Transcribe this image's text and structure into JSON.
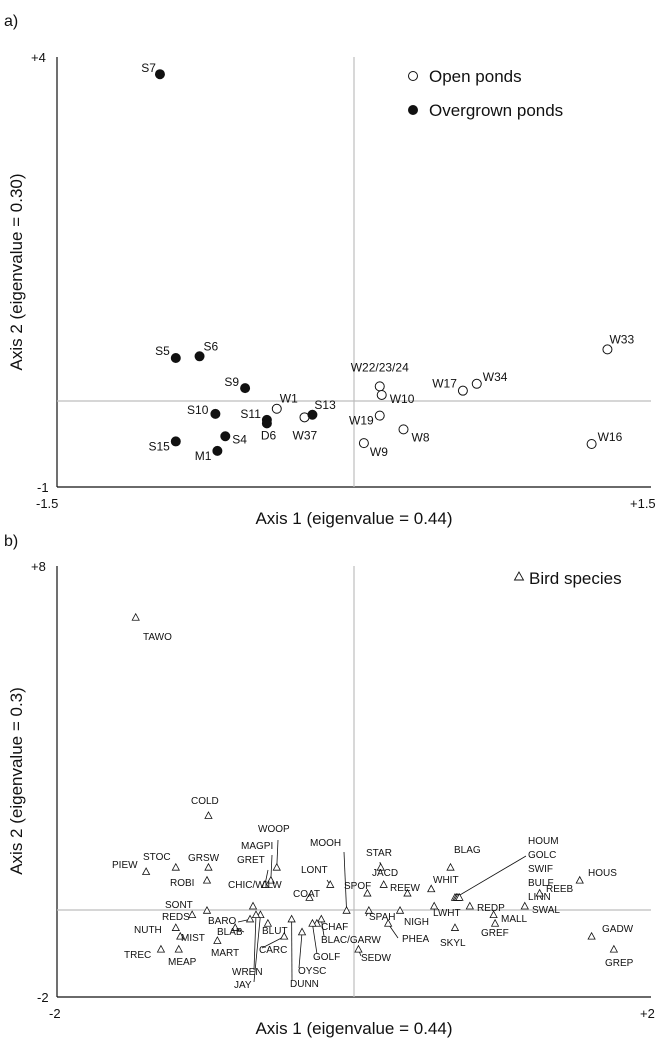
{
  "chart_data": [
    {
      "panel_label": "a)",
      "type": "scatter",
      "xlabel": "Axis 1 (eigenvalue = 0.44)",
      "ylabel": "Axis 2 (eigenvalue = 0.30)",
      "xlim": [
        -1.5,
        1.5
      ],
      "ylim": [
        -1,
        4
      ],
      "xtick_labels": [
        "-1.5",
        "+1.5"
      ],
      "ytick_labels": [
        "+4",
        "-1"
      ],
      "grid": false,
      "legend_position": "top-right",
      "series": [
        {
          "name": "Open ponds",
          "marker": "open-circle",
          "points": [
            {
              "label": "W33",
              "x": 1.28,
              "y": 0.6
            },
            {
              "label": "W16",
              "x": 1.2,
              "y": -0.5
            },
            {
              "label": "W34",
              "x": 0.62,
              "y": 0.2
            },
            {
              "label": "W17",
              "x": 0.55,
              "y": 0.12
            },
            {
              "label": "W22/23/24",
              "x": 0.13,
              "y": 0.17
            },
            {
              "label": "W10",
              "x": 0.14,
              "y": 0.07
            },
            {
              "label": "W19",
              "x": 0.13,
              "y": -0.17
            },
            {
              "label": "W8",
              "x": 0.25,
              "y": -0.33
            },
            {
              "label": "W9",
              "x": 0.05,
              "y": -0.49
            },
            {
              "label": "W37",
              "x": -0.25,
              "y": -0.19
            },
            {
              "label": "W1",
              "x": -0.39,
              "y": -0.09
            }
          ]
        },
        {
          "name": "Overgrown ponds",
          "marker": "filled-circle",
          "points": [
            {
              "label": "S7",
              "x": -0.98,
              "y": 3.8
            },
            {
              "label": "S5",
              "x": -0.9,
              "y": 0.5
            },
            {
              "label": "S6",
              "x": -0.78,
              "y": 0.52
            },
            {
              "label": "S9",
              "x": -0.55,
              "y": 0.15
            },
            {
              "label": "S10",
              "x": -0.7,
              "y": -0.15
            },
            {
              "label": "S11",
              "x": -0.44,
              "y": -0.22
            },
            {
              "label": "D6",
              "x": -0.44,
              "y": -0.26
            },
            {
              "label": "S13",
              "x": -0.21,
              "y": -0.16
            },
            {
              "label": "S15",
              "x": -0.9,
              "y": -0.47
            },
            {
              "label": "S4",
              "x": -0.65,
              "y": -0.41
            },
            {
              "label": "M1",
              "x": -0.69,
              "y": -0.58
            }
          ]
        }
      ]
    },
    {
      "panel_label": "b)",
      "type": "scatter",
      "xlabel": "Axis 1 (eigenvalue = 0.44)",
      "ylabel": "Axis 2 (eigenvalue = 0.3)",
      "xlim": [
        -2,
        2
      ],
      "ylim": [
        -2,
        8
      ],
      "xtick_labels": [
        "-2",
        "+2"
      ],
      "ytick_labels": [
        "+8",
        "-2"
      ],
      "grid": false,
      "legend_position": "top-right",
      "series": [
        {
          "name": "Bird species",
          "marker": "open-triangle",
          "points": [
            {
              "label": "TAWO",
              "x": -1.47,
              "y": 6.8
            },
            {
              "label": "COLD",
              "x": -0.98,
              "y": 2.2
            },
            {
              "label": "PIEW",
              "x": -1.4,
              "y": 0.9
            },
            {
              "label": "STOC",
              "x": -1.2,
              "y": 1.0
            },
            {
              "label": "GRSW",
              "x": -0.98,
              "y": 1.0
            },
            {
              "label": "ROBI",
              "x": -0.99,
              "y": 0.7
            },
            {
              "label": "WOOP",
              "x": -0.52,
              "y": 1.0
            },
            {
              "label": "MAGPI",
              "x": -0.56,
              "y": 0.7
            },
            {
              "label": "GRET",
              "x": -0.6,
              "y": 0.6
            },
            {
              "label": "MOOH",
              "x": -0.05,
              "y": 0.0
            },
            {
              "label": "LONT",
              "x": -0.16,
              "y": 0.6
            },
            {
              "label": "COAT",
              "x": -0.3,
              "y": 0.3
            },
            {
              "label": "CHIC/WILW",
              "x": -0.68,
              "y": 0.1
            },
            {
              "label": "STAR",
              "x": 0.18,
              "y": 1.0
            },
            {
              "label": "JACD",
              "x": 0.2,
              "y": 0.6
            },
            {
              "label": "SPOF",
              "x": 0.09,
              "y": 0.4
            },
            {
              "label": "REEW",
              "x": 0.36,
              "y": 0.4
            },
            {
              "label": "WHIT",
              "x": 0.52,
              "y": 0.5
            },
            {
              "label": "BLAG",
              "x": 0.65,
              "y": 1.0
            },
            {
              "label": "HOUM",
              "x": 0.68,
              "y": 0.3
            },
            {
              "label": "GOLC",
              "x": 0.69,
              "y": 0.3
            },
            {
              "label": "SWIF",
              "x": 0.7,
              "y": 0.3
            },
            {
              "label": "BULF",
              "x": 0.7,
              "y": 0.3
            },
            {
              "label": "LINN",
              "x": 0.71,
              "y": 0.3
            },
            {
              "label": "HOUS",
              "x": 1.52,
              "y": 0.7
            },
            {
              "label": "REEB",
              "x": 1.25,
              "y": 0.4
            },
            {
              "label": "SWAL",
              "x": 1.15,
              "y": 0.1
            },
            {
              "label": "MALL",
              "x": 0.94,
              "y": -0.1
            },
            {
              "label": "REDP",
              "x": 0.78,
              "y": 0.1
            },
            {
              "label": "LWHT",
              "x": 0.54,
              "y": 0.1
            },
            {
              "label": "GREF",
              "x": 0.95,
              "y": -0.3
            },
            {
              "label": "GADW",
              "x": 1.6,
              "y": -0.6
            },
            {
              "label": "GREP",
              "x": 1.75,
              "y": -0.9
            },
            {
              "label": "SPAH",
              "x": 0.1,
              "y": 0.0
            },
            {
              "label": "NIGH",
              "x": 0.31,
              "y": 0.0
            },
            {
              "label": "PHEA",
              "x": 0.23,
              "y": -0.3
            },
            {
              "label": "SKYL",
              "x": 0.68,
              "y": -0.4
            },
            {
              "label": "SEDW",
              "x": 0.03,
              "y": -0.9
            },
            {
              "label": "BLAC/GARW",
              "x": -0.22,
              "y": -0.2
            },
            {
              "label": "CHAF",
              "x": -0.25,
              "y": -0.3
            },
            {
              "label": "GOLF",
              "x": -0.28,
              "y": -0.3
            },
            {
              "label": "OYSC",
              "x": -0.35,
              "y": -0.5
            },
            {
              "label": "DUNN",
              "x": -0.42,
              "y": -0.2
            },
            {
              "label": "CARC",
              "x": -0.47,
              "y": -0.6
            },
            {
              "label": "BLUT",
              "x": -0.58,
              "y": -0.3
            },
            {
              "label": "JAY",
              "x": -0.63,
              "y": -0.1
            },
            {
              "label": "WREN",
              "x": -0.66,
              "y": -0.1
            },
            {
              "label": "BARO",
              "x": -0.7,
              "y": -0.2
            },
            {
              "label": "BLAB",
              "x": -0.8,
              "y": -0.4
            },
            {
              "label": "MART",
              "x": -0.92,
              "y": -0.7
            },
            {
              "label": "SONT",
              "x": -0.99,
              "y": 0.0
            },
            {
              "label": "REDS",
              "x": -1.09,
              "y": -0.1
            },
            {
              "label": "NUTH",
              "x": -1.2,
              "y": -0.4
            },
            {
              "label": "MIST",
              "x": -1.17,
              "y": -0.6
            },
            {
              "label": "TREC",
              "x": -1.3,
              "y": -0.9
            },
            {
              "label": "MEAP",
              "x": -1.18,
              "y": -0.9
            }
          ]
        }
      ]
    }
  ]
}
